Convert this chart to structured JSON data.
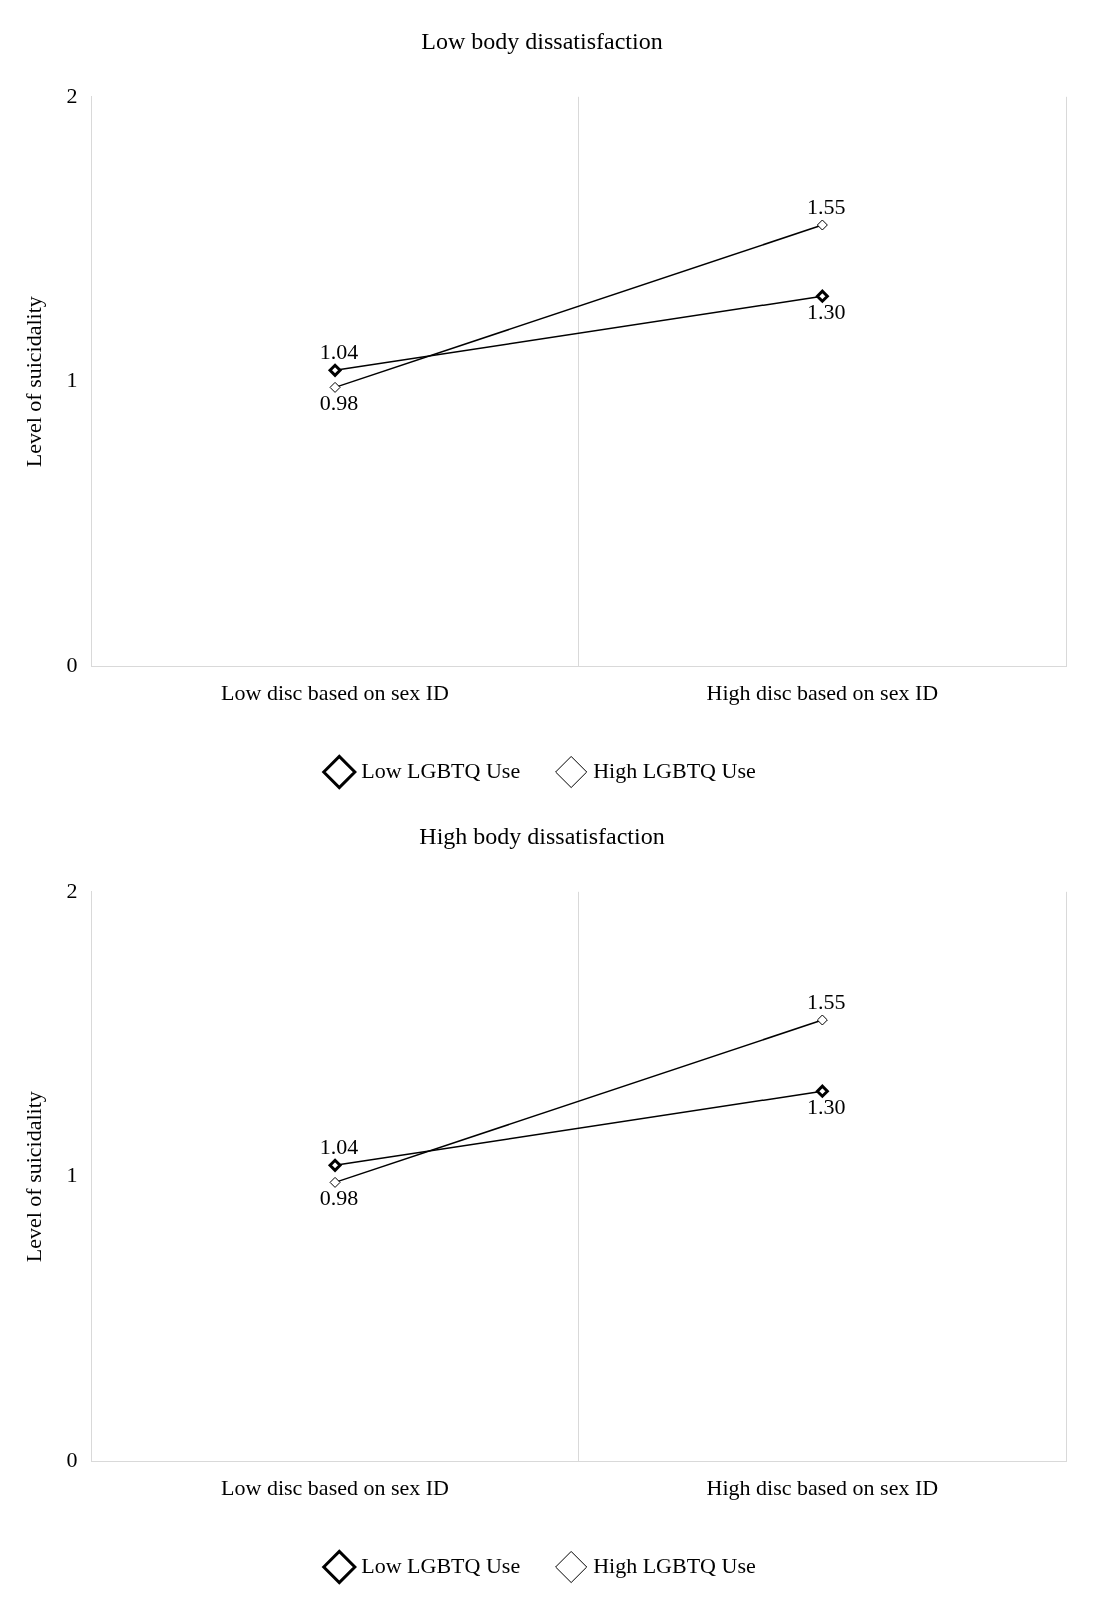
{
  "chart_data": [
    {
      "type": "line",
      "title": "Low body dissatisfaction",
      "ylabel": "Level of suicidality",
      "categories": [
        "Low disc based on sex ID",
        "High disc based on sex ID"
      ],
      "series": [
        {
          "name": "Low LGBTQ Use",
          "color": "#000000",
          "values": [
            1.04,
            1.3
          ],
          "value_labels": [
            "1.04",
            "1.30"
          ],
          "marker": "diamond"
        },
        {
          "name": "High LGBTQ Use",
          "color": "#000000",
          "values": [
            0.98,
            1.55
          ],
          "value_labels": [
            "0.98",
            "1.55"
          ],
          "marker": "diamond"
        }
      ],
      "ylim": [
        0,
        2
      ],
      "yticks": [
        0,
        1,
        2
      ],
      "grid": "x",
      "legend": "bottom"
    },
    {
      "type": "line",
      "title": "High body dissatisfaction",
      "ylabel": "Level of suicidality",
      "categories": [
        "Low disc based on sex ID",
        "High disc based on sex ID"
      ],
      "series": [
        {
          "name": "Low LGBTQ Use",
          "color": "#000000",
          "values": [
            1.04,
            1.3
          ],
          "value_labels": [
            "1.04",
            "1.30"
          ],
          "marker": "diamond"
        },
        {
          "name": "High LGBTQ Use",
          "color": "#000000",
          "values": [
            0.98,
            1.55
          ],
          "value_labels": [
            "0.98",
            "1.55"
          ],
          "marker": "diamond"
        }
      ],
      "ylim": [
        0,
        2
      ],
      "yticks": [
        0,
        1,
        2
      ],
      "grid": "x",
      "legend": "bottom"
    }
  ]
}
